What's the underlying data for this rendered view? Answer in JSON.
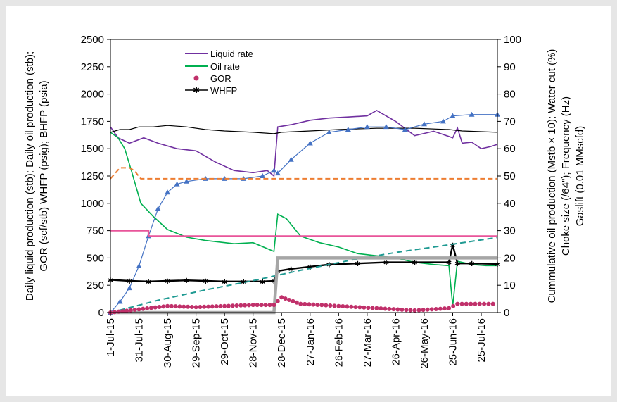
{
  "chart_data": {
    "type": "line",
    "yleft": {
      "labels": [
        "Daily liquid production (stb); Daily oil production (stb);",
        "GOR (scf/stb) WHFP (psig); BHFP (psia)"
      ],
      "ylim": [
        0,
        2500
      ],
      "ticks": [
        0,
        250,
        500,
        750,
        1000,
        1250,
        1500,
        1750,
        2000,
        2250,
        2500
      ]
    },
    "yright": {
      "labels": [
        "Cummulative oil production (Mstb × 10); Water cut (%)",
        "Choke size (/64\"); Frequency (Hz)",
        "Gaslift (0.01 MMscfd)"
      ],
      "ylim": [
        0,
        100
      ],
      "ticks": [
        0,
        10,
        20,
        30,
        40,
        50,
        60,
        70,
        80,
        90,
        100
      ]
    },
    "x": {
      "ticks": [
        "1-Jul-15",
        "31-Jul-15",
        "30-Aug-15",
        "29-Sep-15",
        "29-Oct-15",
        "28-Nov-15",
        "28-Dec-15",
        "27-Jan-16",
        "26-Feb-16",
        "27-Mar-16",
        "26-Apr-16",
        "26-May-16",
        "25-Jun-16",
        "25-Jul-16"
      ]
    },
    "legend": [
      {
        "name": "Liquid rate",
        "color": "#7030a0",
        "marker": "line"
      },
      {
        "name": "Oil rate",
        "color": "#00b050",
        "marker": "line"
      },
      {
        "name": "GOR",
        "color": "#c0306a",
        "marker": "circle"
      },
      {
        "name": "WHFP",
        "color": "#000000",
        "marker": "star"
      }
    ],
    "legend_position": "top-left",
    "series": [
      {
        "name": "Liquid rate",
        "axis": "left",
        "color": "#7030a0",
        "points": [
          [
            0,
            1700
          ],
          [
            8,
            1600
          ],
          [
            20,
            1550
          ],
          [
            35,
            1600
          ],
          [
            50,
            1550
          ],
          [
            70,
            1500
          ],
          [
            90,
            1480
          ],
          [
            110,
            1380
          ],
          [
            130,
            1300
          ],
          [
            150,
            1280
          ],
          [
            165,
            1300
          ],
          [
            172,
            1250
          ],
          [
            176,
            1700
          ],
          [
            190,
            1720
          ],
          [
            210,
            1760
          ],
          [
            230,
            1780
          ],
          [
            250,
            1790
          ],
          [
            270,
            1800
          ],
          [
            280,
            1850
          ],
          [
            300,
            1750
          ],
          [
            320,
            1620
          ],
          [
            340,
            1660
          ],
          [
            360,
            1600
          ],
          [
            365,
            1690
          ],
          [
            370,
            1550
          ],
          [
            380,
            1560
          ],
          [
            390,
            1500
          ],
          [
            400,
            1520
          ],
          [
            407,
            1540
          ]
        ]
      },
      {
        "name": "Oil rate",
        "axis": "left",
        "color": "#00b050",
        "points": [
          [
            0,
            1650
          ],
          [
            8,
            1600
          ],
          [
            15,
            1500
          ],
          [
            22,
            1300
          ],
          [
            32,
            1000
          ],
          [
            45,
            880
          ],
          [
            60,
            760
          ],
          [
            80,
            690
          ],
          [
            100,
            660
          ],
          [
            130,
            630
          ],
          [
            150,
            640
          ],
          [
            172,
            560
          ],
          [
            176,
            900
          ],
          [
            185,
            860
          ],
          [
            200,
            700
          ],
          [
            220,
            640
          ],
          [
            240,
            600
          ],
          [
            260,
            540
          ],
          [
            280,
            520
          ],
          [
            300,
            500
          ],
          [
            320,
            460
          ],
          [
            340,
            440
          ],
          [
            356,
            430
          ],
          [
            360,
            60
          ],
          [
            365,
            470
          ],
          [
            380,
            440
          ],
          [
            395,
            430
          ],
          [
            407,
            430
          ]
        ]
      },
      {
        "name": "Water cut",
        "axis": "right",
        "color": "#000000",
        "points": [
          [
            0,
            66
          ],
          [
            10,
            67
          ],
          [
            20,
            67
          ],
          [
            30,
            68
          ],
          [
            45,
            68
          ],
          [
            60,
            68.5
          ],
          [
            80,
            68
          ],
          [
            100,
            67
          ],
          [
            120,
            66.5
          ],
          [
            150,
            66
          ],
          [
            172,
            65.5
          ],
          [
            180,
            66
          ],
          [
            210,
            66.5
          ],
          [
            240,
            67
          ],
          [
            280,
            67.5
          ],
          [
            320,
            67.5
          ],
          [
            356,
            67
          ],
          [
            370,
            66.5
          ],
          [
            407,
            66
          ]
        ]
      },
      {
        "name": "Liquid rate (gaslift)",
        "axis": "right",
        "color": "#4472c4",
        "points": [
          [
            0,
            0
          ],
          [
            10,
            4
          ],
          [
            20,
            9
          ],
          [
            30,
            17
          ],
          [
            40,
            28
          ],
          [
            50,
            38
          ],
          [
            60,
            44
          ],
          [
            70,
            47
          ],
          [
            80,
            48
          ],
          [
            100,
            49
          ],
          [
            120,
            49
          ],
          [
            140,
            49
          ],
          [
            160,
            50
          ],
          [
            172,
            52
          ],
          [
            176,
            51
          ],
          [
            190,
            56
          ],
          [
            210,
            62
          ],
          [
            230,
            66
          ],
          [
            250,
            67
          ],
          [
            270,
            68
          ],
          [
            290,
            68
          ],
          [
            310,
            67
          ],
          [
            330,
            69
          ],
          [
            350,
            70
          ],
          [
            360,
            72
          ],
          [
            380,
            72.5
          ],
          [
            407,
            72.5
          ]
        ]
      },
      {
        "name": "WHFP",
        "axis": "left",
        "color": "#000000",
        "points": [
          [
            0,
            300
          ],
          [
            20,
            290
          ],
          [
            40,
            285
          ],
          [
            60,
            290
          ],
          [
            80,
            295
          ],
          [
            100,
            290
          ],
          [
            120,
            285
          ],
          [
            140,
            285
          ],
          [
            160,
            285
          ],
          [
            172,
            290
          ],
          [
            176,
            380
          ],
          [
            190,
            400
          ],
          [
            210,
            420
          ],
          [
            230,
            440
          ],
          [
            260,
            450
          ],
          [
            290,
            460
          ],
          [
            320,
            460
          ],
          [
            356,
            460
          ],
          [
            360,
            620
          ],
          [
            365,
            450
          ],
          [
            380,
            450
          ],
          [
            407,
            445
          ]
        ]
      },
      {
        "name": "Choke size",
        "axis": "right",
        "color": "#ed7d31",
        "points": [
          [
            0,
            49
          ],
          [
            10,
            53
          ],
          [
            20,
            53
          ],
          [
            25,
            52
          ],
          [
            32,
            49
          ],
          [
            172,
            49
          ],
          [
            176,
            49
          ],
          [
            210,
            49
          ],
          [
            230,
            49
          ],
          [
            260,
            49
          ],
          [
            300,
            49
          ],
          [
            356,
            49
          ],
          [
            360,
            49
          ],
          [
            407,
            49
          ]
        ]
      },
      {
        "name": "Frequency",
        "axis": "right",
        "color": "#e8559a",
        "points": [
          [
            0,
            30
          ],
          [
            40,
            30
          ],
          [
            40,
            28
          ],
          [
            407,
            28
          ]
        ]
      },
      {
        "name": "Cumulative oil production",
        "axis": "right",
        "color": "#1f9a92",
        "points": [
          [
            0,
            0
          ],
          [
            50,
            4.5
          ],
          [
            100,
            8.3
          ],
          [
            150,
            11.7
          ],
          [
            200,
            15.5
          ],
          [
            250,
            19
          ],
          [
            300,
            22
          ],
          [
            350,
            24.5
          ],
          [
            407,
            27.5
          ]
        ]
      },
      {
        "name": "Gaslift",
        "axis": "right",
        "color": "#a6a6a6",
        "points": [
          [
            0,
            0
          ],
          [
            172,
            0
          ],
          [
            176,
            20
          ],
          [
            260,
            20
          ],
          [
            300,
            20
          ],
          [
            356,
            20
          ],
          [
            360,
            20
          ],
          [
            407,
            20
          ]
        ]
      },
      {
        "name": "GOR",
        "axis": "left",
        "color": "#c0306a",
        "points": [
          [
            0,
            0
          ],
          [
            30,
            30
          ],
          [
            60,
            60
          ],
          [
            90,
            50
          ],
          [
            120,
            60
          ],
          [
            150,
            70
          ],
          [
            172,
            70
          ],
          [
            180,
            140
          ],
          [
            200,
            80
          ],
          [
            240,
            60
          ],
          [
            280,
            40
          ],
          [
            320,
            20
          ],
          [
            356,
            40
          ],
          [
            365,
            80
          ],
          [
            407,
            80
          ]
        ]
      }
    ]
  },
  "colors": {
    "liquid": "#7030a0",
    "oil": "#00b050",
    "gor": "#c0306a",
    "whfp": "#000000",
    "blue": "#4472c4",
    "choke": "#ed7d31",
    "freq": "#e8559a",
    "cum": "#1f9a92",
    "gaslift": "#a6a6a6"
  }
}
